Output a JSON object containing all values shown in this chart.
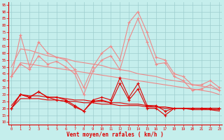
{
  "x": [
    0,
    1,
    2,
    3,
    4,
    5,
    6,
    7,
    8,
    9,
    10,
    11,
    12,
    13,
    14,
    15,
    16,
    17,
    18,
    19,
    20,
    21,
    22,
    23
  ],
  "line_gust1": [
    43,
    73,
    50,
    68,
    60,
    57,
    55,
    48,
    35,
    50,
    60,
    65,
    55,
    82,
    90,
    75,
    57,
    55,
    45,
    43,
    37,
    37,
    40,
    35
  ],
  "line_gust2": [
    43,
    52,
    48,
    58,
    52,
    54,
    50,
    45,
    30,
    47,
    55,
    58,
    48,
    70,
    85,
    68,
    52,
    53,
    43,
    40,
    33,
    34,
    37,
    33
  ],
  "line_trend_hi1": [
    50,
    63,
    62,
    60,
    58,
    57,
    56,
    54,
    53,
    52,
    51,
    49,
    48,
    47,
    45,
    44,
    43,
    41,
    40,
    39,
    37,
    36,
    35,
    33
  ],
  "line_trend_hi2": [
    43,
    53,
    52,
    51,
    50,
    49,
    48,
    47,
    46,
    45,
    44,
    43,
    42,
    41,
    40,
    39,
    38,
    37,
    36,
    35,
    34,
    33,
    32,
    30
  ],
  "line_wind1": [
    20,
    30,
    28,
    32,
    28,
    28,
    26,
    22,
    18,
    26,
    28,
    26,
    42,
    28,
    38,
    22,
    22,
    18,
    20,
    20,
    20,
    20,
    20,
    20
  ],
  "line_wind2": [
    20,
    30,
    28,
    32,
    28,
    26,
    25,
    21,
    18,
    25,
    26,
    24,
    38,
    26,
    34,
    20,
    20,
    15,
    20,
    20,
    20,
    20,
    20,
    20
  ],
  "line_trend_lo1": [
    22,
    30,
    29,
    29,
    28,
    28,
    27,
    26,
    26,
    25,
    25,
    24,
    24,
    23,
    23,
    22,
    21,
    21,
    20,
    20,
    20,
    20,
    19,
    19
  ],
  "line_trend_lo2": [
    20,
    27,
    27,
    27,
    26,
    26,
    25,
    25,
    24,
    24,
    23,
    23,
    22,
    22,
    22,
    21,
    21,
    20,
    20,
    20,
    19,
    19,
    19,
    18
  ],
  "bg_color": "#c5eeec",
  "grid_color": "#9ecece",
  "color_dark": "#dd0000",
  "color_light": "#ee8888",
  "xlabel": "Vent moyen/en rafales ( km/h )",
  "yticks": [
    10,
    15,
    20,
    25,
    30,
    35,
    40,
    45,
    50,
    55,
    60,
    65,
    70,
    75,
    80,
    85,
    90,
    95
  ],
  "ylim": [
    8,
    97
  ],
  "xlim": [
    -0.3,
    23.3
  ]
}
